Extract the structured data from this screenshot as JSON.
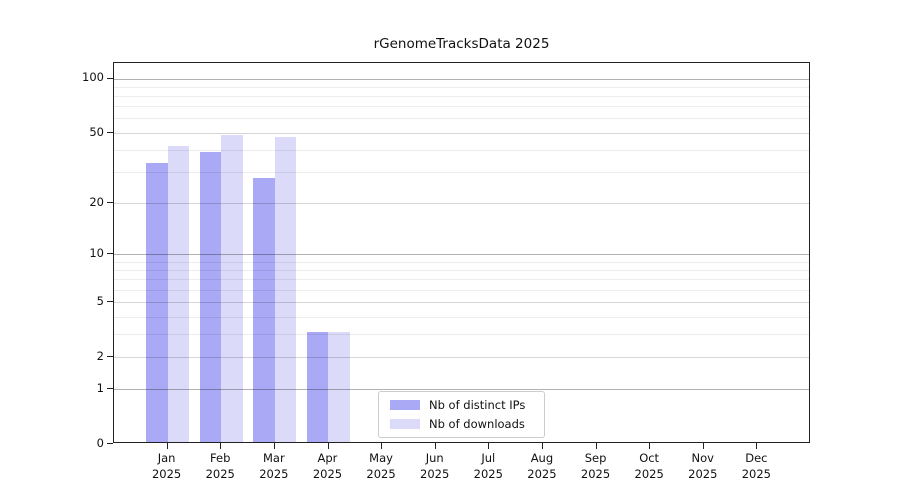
{
  "chart_data": {
    "type": "bar",
    "title": "rGenomeTracksData 2025",
    "categories": [
      "Jan",
      "Feb",
      "Mar",
      "Apr",
      "May",
      "Jun",
      "Jul",
      "Aug",
      "Sep",
      "Oct",
      "Nov",
      "Dec"
    ],
    "x_tick_year": "2025",
    "series": [
      {
        "name": "Nb of distinct IPs",
        "color": "#a9a9f5",
        "values": [
          33,
          38,
          27,
          3,
          0,
          0,
          0,
          0,
          0,
          0,
          0,
          0
        ]
      },
      {
        "name": "Nb of downloads",
        "color": "#dbdbf9",
        "values": [
          41,
          47,
          46,
          3,
          0,
          0,
          0,
          0,
          0,
          0,
          0,
          0
        ]
      }
    ],
    "yscale": "log1p",
    "ylim": [
      0,
      121.8
    ],
    "yticks": [
      0,
      1,
      2,
      5,
      10,
      20,
      50,
      100
    ],
    "yticks_minor": [
      3,
      4,
      6,
      7,
      8,
      9,
      30,
      40,
      60,
      70,
      80,
      90
    ],
    "grid": true,
    "xlabel": "",
    "ylabel": "",
    "legend": {
      "position": "lower-center-inside",
      "entries": [
        "Nb of distinct IPs",
        "Nb of downloads"
      ]
    }
  },
  "colors": {
    "spine": "#222222",
    "grid_major_decade": "rgba(0,0,0,0.30)",
    "grid_major": "rgba(0,0,0,0.16)",
    "grid_minor": "rgba(0,0,0,0.075)",
    "background": "#ffffff"
  }
}
